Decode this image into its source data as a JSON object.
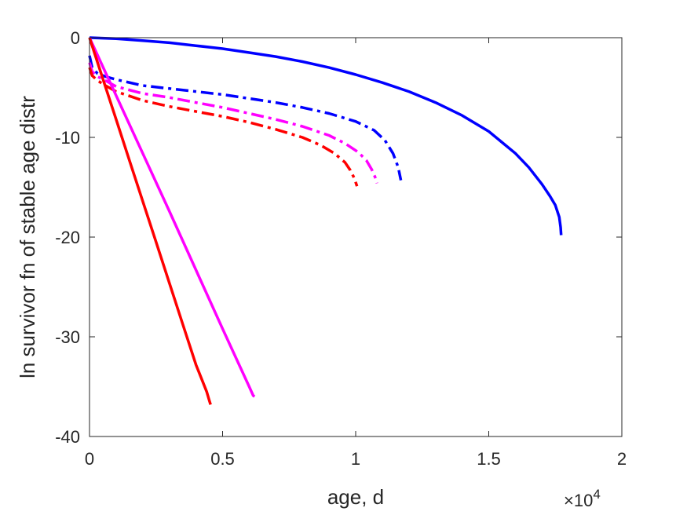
{
  "chart_data": {
    "type": "line",
    "title": "",
    "xlabel": "age, d",
    "ylabel": "ln survivor fn of stable age distr",
    "x_exponent_label": "×10",
    "x_exponent_power": "4",
    "xlim": [
      0,
      20000
    ],
    "ylim": [
      -40,
      0
    ],
    "xticks": [
      0,
      5000,
      10000,
      15000,
      20000
    ],
    "xtick_labels": [
      "0",
      "0.5",
      "1",
      "1.5",
      "2"
    ],
    "yticks": [
      -40,
      -30,
      -20,
      -10,
      0
    ],
    "ytick_labels": [
      "-40",
      "-30",
      "-20",
      "-10",
      "0"
    ],
    "grid": false,
    "legend": "none",
    "series": [
      {
        "color": "#0000ff",
        "dash": "solid",
        "x": [
          0,
          1000,
          2000,
          3000,
          4000,
          5000,
          6000,
          7000,
          8000,
          9000,
          10000,
          11000,
          12000,
          13000,
          14000,
          15000,
          16000,
          16500,
          17000,
          17300,
          17500,
          17650,
          17700,
          17720
        ],
        "y": [
          0,
          -0.1,
          -0.3,
          -0.5,
          -0.8,
          -1.1,
          -1.5,
          -1.9,
          -2.4,
          -3.0,
          -3.7,
          -4.5,
          -5.4,
          -6.5,
          -7.8,
          -9.4,
          -11.6,
          -13.0,
          -14.7,
          -15.9,
          -16.8,
          -18.0,
          -19.0,
          -19.8
        ]
      },
      {
        "color": "#0000ff",
        "dash": "dashdot",
        "x": [
          0,
          100,
          300,
          600,
          1000,
          2000,
          3000,
          4000,
          5000,
          6000,
          7000,
          8000,
          9000,
          10000,
          10700,
          11100,
          11400,
          11600,
          11700
        ],
        "y": [
          -1.8,
          -3.0,
          -3.6,
          -3.9,
          -4.2,
          -4.8,
          -5.1,
          -5.4,
          -5.7,
          -6.1,
          -6.5,
          -7.0,
          -7.6,
          -8.4,
          -9.3,
          -10.3,
          -11.6,
          -13.0,
          -14.3
        ]
      },
      {
        "color": "#ff00ff",
        "dash": "dashdot",
        "x": [
          0,
          100,
          300,
          600,
          1000,
          2000,
          3000,
          4000,
          5000,
          6000,
          7000,
          8000,
          9000,
          9600,
          10100,
          10400,
          10600,
          10750,
          10800
        ],
        "y": [
          -2.5,
          -3.4,
          -3.9,
          -4.3,
          -4.9,
          -5.6,
          -6.0,
          -6.5,
          -7.0,
          -7.6,
          -8.2,
          -8.9,
          -9.8,
          -10.6,
          -11.5,
          -12.3,
          -13.2,
          -14.1,
          -14.6
        ]
      },
      {
        "color": "#ff0000",
        "dash": "dashdot",
        "x": [
          0,
          100,
          300,
          600,
          1000,
          2000,
          3000,
          4000,
          5000,
          6000,
          7000,
          8000,
          8700,
          9200,
          9600,
          9800,
          9950,
          10050
        ],
        "y": [
          -3.0,
          -3.8,
          -4.3,
          -4.8,
          -5.4,
          -6.3,
          -6.9,
          -7.4,
          -7.9,
          -8.5,
          -9.2,
          -10.0,
          -10.8,
          -11.6,
          -12.5,
          -13.3,
          -14.1,
          -14.9
        ]
      },
      {
        "color": "#ff00ff",
        "dash": "solid",
        "x": [
          0,
          1000,
          2000,
          3000,
          4000,
          5000,
          6000,
          6100,
          6150,
          6200
        ],
        "y": [
          0,
          -5.8,
          -11.6,
          -17.4,
          -23.3,
          -29.2,
          -35.0,
          -35.6,
          -35.9,
          -36.0
        ]
      },
      {
        "color": "#ff0000",
        "dash": "solid",
        "x": [
          0,
          500,
          1000,
          1500,
          2000,
          2500,
          3000,
          3500,
          4000,
          4400,
          4500,
          4550
        ],
        "y": [
          0,
          -4.1,
          -8.2,
          -12.3,
          -16.4,
          -20.5,
          -24.6,
          -28.7,
          -32.8,
          -35.5,
          -36.4,
          -36.8
        ]
      }
    ]
  }
}
